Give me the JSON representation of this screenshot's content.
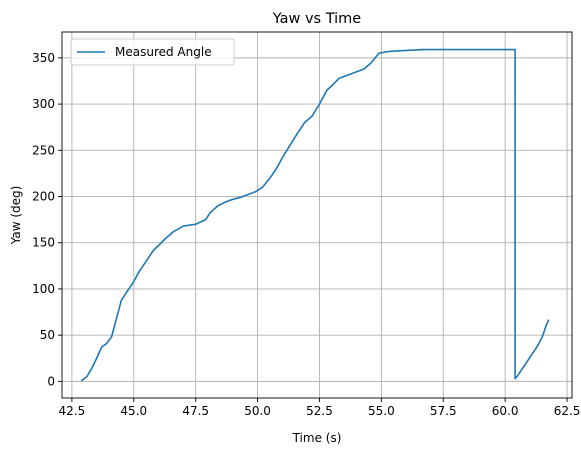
{
  "chart_data": {
    "type": "line",
    "title": "Yaw vs Time",
    "xlabel": "Time (s)",
    "ylabel": "Yaw (deg)",
    "xlim": [
      42.1,
      62.7
    ],
    "ylim": [
      -18,
      378
    ],
    "xticks": [
      42.5,
      45.0,
      47.5,
      50.0,
      52.5,
      55.0,
      57.5,
      60.0,
      62.5
    ],
    "xtick_labels": [
      "42.5",
      "45.0",
      "47.5",
      "50.0",
      "52.5",
      "55.0",
      "57.5",
      "60.0",
      "62.5"
    ],
    "yticks": [
      0,
      50,
      100,
      150,
      200,
      250,
      300,
      350
    ],
    "ytick_labels": [
      "0",
      "50",
      "100",
      "150",
      "200",
      "250",
      "300",
      "350"
    ],
    "grid": true,
    "legend_position": "upper-left",
    "colors": {
      "series": "#1f77b4"
    },
    "series": [
      {
        "name": "Measured Angle",
        "x": [
          42.9,
          43.1,
          43.3,
          43.5,
          43.7,
          43.9,
          44.1,
          44.3,
          44.5,
          44.8,
          45.0,
          45.2,
          45.5,
          45.8,
          46.0,
          46.3,
          46.6,
          47.0,
          47.5,
          47.9,
          48.1,
          48.4,
          48.7,
          49.0,
          49.3,
          49.6,
          49.9,
          50.2,
          50.5,
          50.8,
          51.0,
          51.3,
          51.6,
          51.9,
          52.2,
          52.5,
          52.8,
          53.0,
          53.3,
          53.6,
          54.0,
          54.3,
          54.6,
          54.9,
          55.3,
          56.0,
          56.7,
          57.5,
          58.5,
          59.5,
          60.4,
          60.4,
          60.5,
          60.7,
          60.9,
          61.1,
          61.3,
          61.5,
          61.65,
          61.75
        ],
        "y": [
          1,
          5,
          14,
          25,
          37,
          41,
          48,
          68,
          88,
          100,
          108,
          118,
          130,
          142,
          147,
          155,
          162,
          168,
          170,
          175,
          183,
          190,
          194,
          197,
          199,
          202,
          205,
          210,
          220,
          232,
          242,
          255,
          268,
          280,
          287,
          300,
          315,
          320,
          328,
          331,
          335,
          338,
          345,
          355,
          357,
          358,
          359,
          359,
          359,
          359,
          359,
          3,
          6,
          14,
          22,
          30,
          38,
          48,
          60,
          66
        ]
      }
    ]
  }
}
